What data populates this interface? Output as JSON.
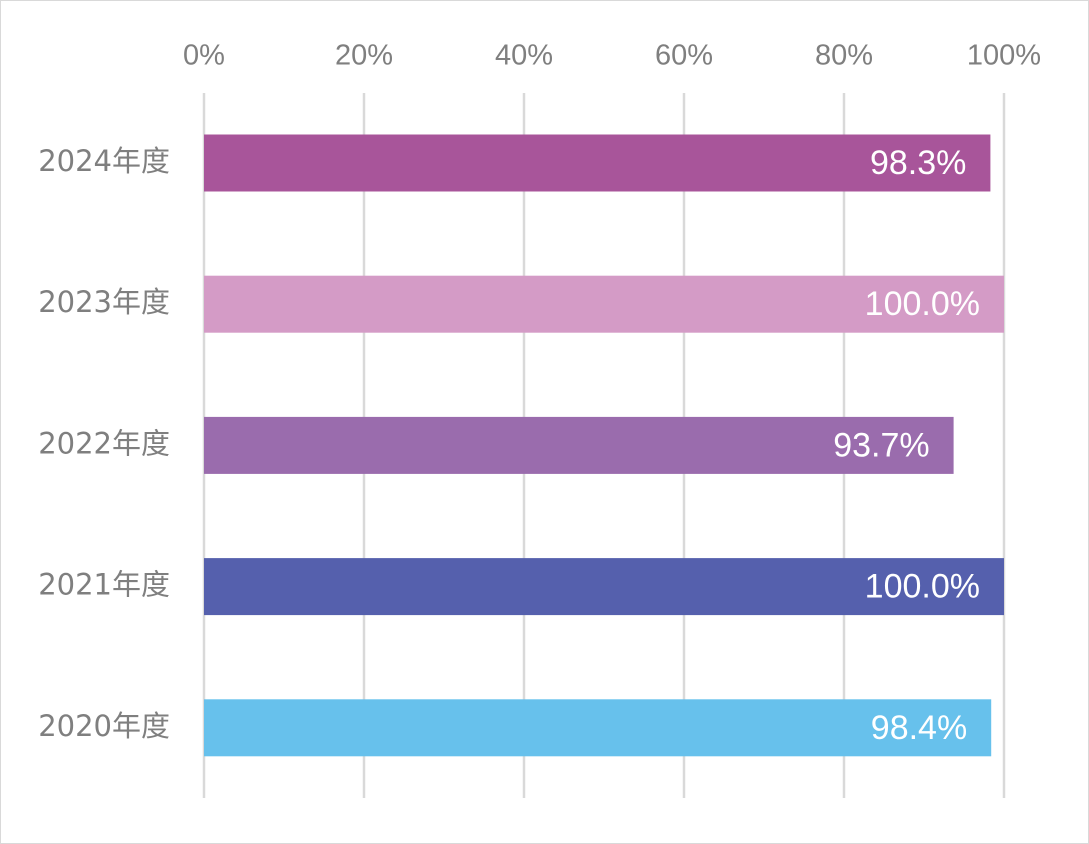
{
  "chart_data": {
    "type": "bar",
    "orientation": "horizontal",
    "title": "",
    "xlabel": "",
    "ylabel": "",
    "categories": [
      "2024年度",
      "2023年度",
      "2022年度",
      "2021年度",
      "2020年度"
    ],
    "values": [
      98.3,
      100.0,
      93.7,
      100.0,
      98.4
    ],
    "data_labels": [
      "98.3%",
      "100.0%",
      "93.7%",
      "100.0%",
      "98.4%"
    ],
    "bar_colors": [
      "#a8559a",
      "#d49bc6",
      "#9a6cad",
      "#5560ad",
      "#67c1ec"
    ],
    "xlim": [
      0,
      100
    ],
    "x_ticks": [
      0,
      20,
      40,
      60,
      80,
      100
    ],
    "x_tick_labels": [
      "0%",
      "20%",
      "40%",
      "60%",
      "80%",
      "100%"
    ],
    "x_axis_position": "top",
    "grid": true,
    "legend": "none"
  }
}
